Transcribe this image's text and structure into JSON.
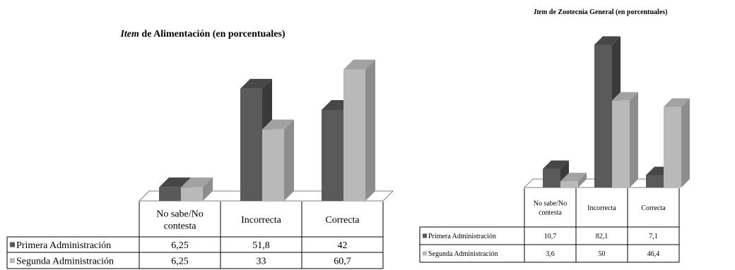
{
  "colors": {
    "primera_front": "#5a5a5a",
    "primera_side": "#3a3a3a",
    "primera_top": "#474747",
    "segunda_front": "#b9b9b9",
    "segunda_side": "#8d8d8d",
    "segunda_top": "#a2a2a2",
    "floor_fill": "#ffffff",
    "grid_line": "#7f7f7f"
  },
  "chart_data": [
    {
      "type": "bar",
      "title_italic": "Item",
      "title_rest": " de Alimentación (en porcentuales)",
      "categories": [
        "No sabe/No contesta",
        "Incorrecta",
        "Correcta"
      ],
      "category_lines": [
        [
          "No sabe/No",
          "contesta"
        ],
        [
          "Incorrecta"
        ],
        [
          "Correcta"
        ]
      ],
      "series": [
        {
          "name": "Primera Administración",
          "values": [
            6.25,
            51.8,
            42
          ],
          "labels": [
            "6,25",
            "51,8",
            "42"
          ]
        },
        {
          "name": "Segunda Administración",
          "values": [
            6.25,
            33,
            60.7
          ],
          "labels": [
            "6,25",
            "33",
            "60,7"
          ]
        }
      ],
      "ylim": [
        0,
        70
      ],
      "legend": "table-left",
      "grid": false
    },
    {
      "type": "bar",
      "title_italic": "Item",
      "title_rest": " de Zootecnia General (en porcentuales)",
      "categories": [
        "No sabe/No contesta",
        "Incorrecta",
        "Correcta"
      ],
      "category_lines": [
        [
          "No sabe/No",
          "contesta"
        ],
        [
          "Incorrecta"
        ],
        [
          "Correcta"
        ]
      ],
      "series": [
        {
          "name": "Primera Administración",
          "values": [
            10.7,
            82.1,
            7.1
          ],
          "labels": [
            "10,7",
            "82,1",
            "7,1"
          ]
        },
        {
          "name": "Segunda Administración",
          "values": [
            3.6,
            50,
            46.4
          ],
          "labels": [
            "3,6",
            "50",
            "46,4"
          ]
        }
      ],
      "ylim": [
        0,
        90
      ],
      "legend": "table-left",
      "grid": false
    }
  ]
}
